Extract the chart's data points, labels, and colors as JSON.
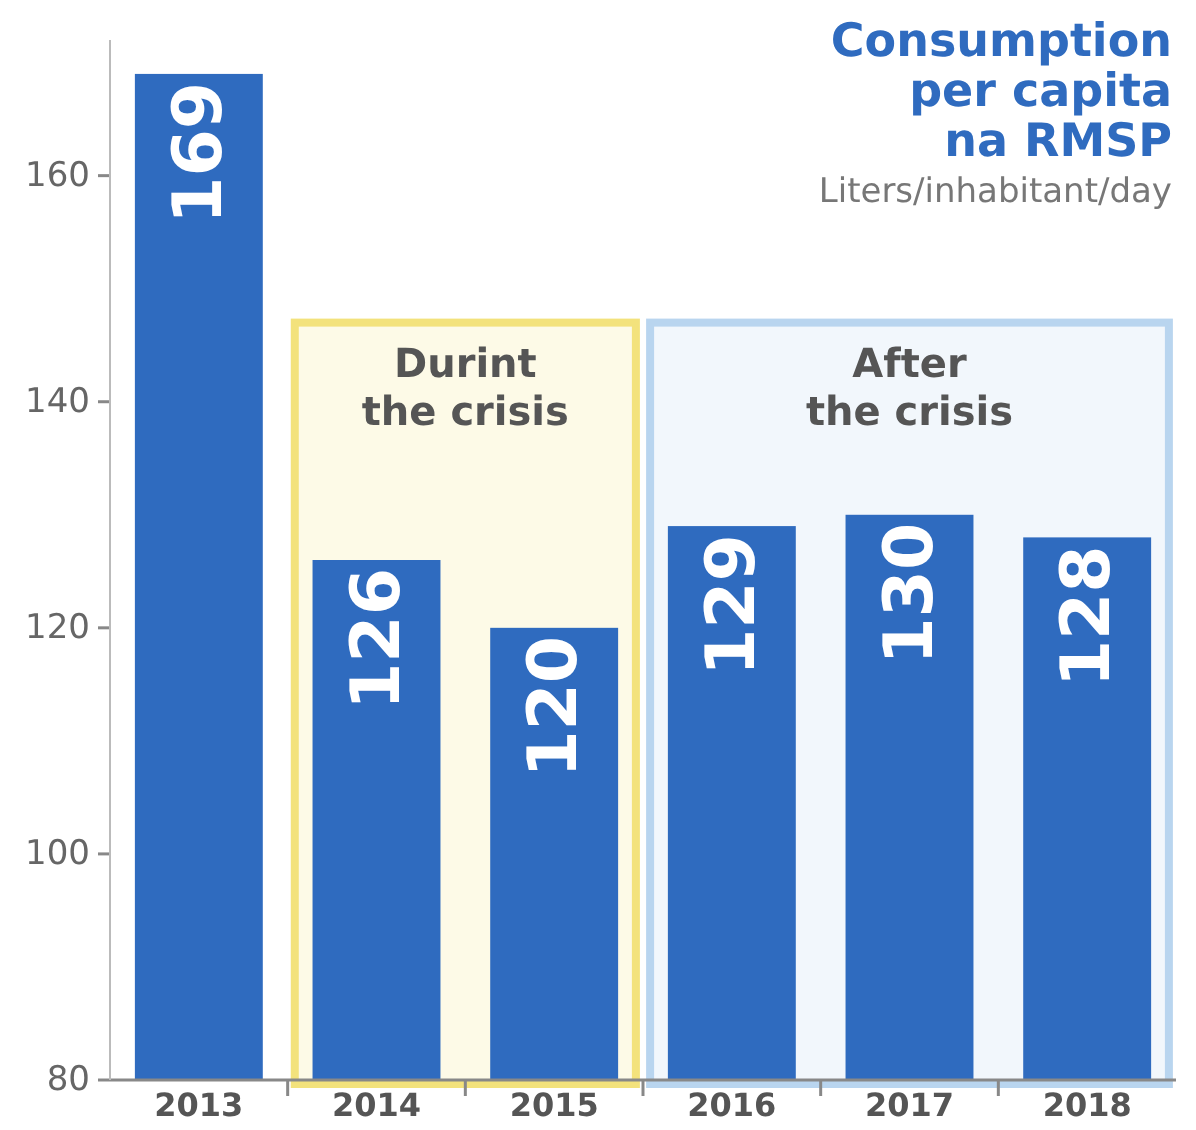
{
  "chart_data": {
    "type": "bar",
    "title": "Consumption\nper capita\nna RMSP",
    "subtitle": "Liters/inhabitant/day",
    "categories": [
      "2013",
      "2014",
      "2015",
      "2016",
      "2017",
      "2018"
    ],
    "values": [
      169,
      126,
      120,
      129,
      130,
      128
    ],
    "color": "#2f6bbf",
    "data_labels": true,
    "ylim": [
      80,
      172
    ],
    "yticks": [
      80,
      100,
      120,
      140,
      160
    ],
    "grid": false,
    "bands": [
      {
        "axis": "x",
        "from": "2014",
        "to": "2015",
        "label": "Durint\nthe crisis",
        "color": "#f3e27c"
      },
      {
        "axis": "x",
        "from": "2016",
        "to": "2018",
        "label": "After\nthe crisis",
        "color": "#b9d5ef"
      }
    ]
  }
}
